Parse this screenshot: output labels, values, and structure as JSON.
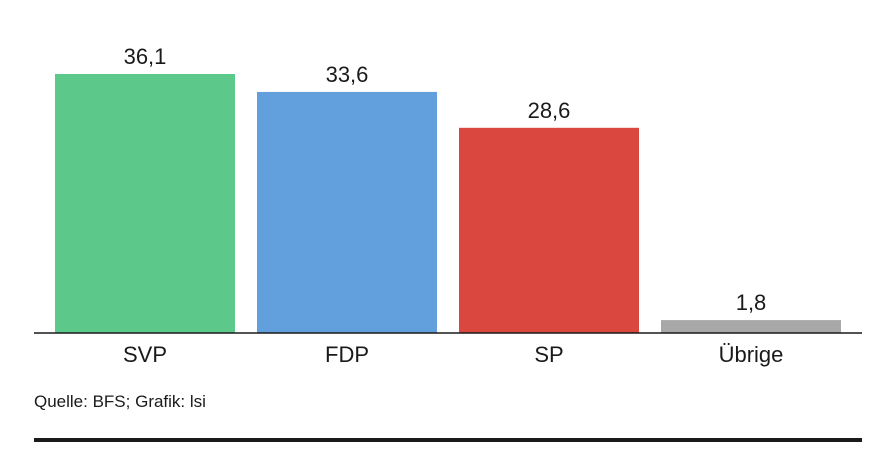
{
  "chart_data": {
    "type": "bar",
    "categories": [
      "SVP",
      "FDP",
      "SP",
      "Übrige"
    ],
    "values": [
      36.1,
      33.6,
      28.6,
      1.8
    ],
    "value_labels": [
      "36,1",
      "33,6",
      "28,6",
      "1,8"
    ],
    "colors": [
      "#5cc98a",
      "#62a0dd",
      "#da473e",
      "#a8a8a8"
    ],
    "title": "",
    "xlabel": "",
    "ylabel": "",
    "ylim": [
      0,
      36.1
    ],
    "grid": false
  },
  "source": "Quelle: BFS; Grafik: lsi"
}
